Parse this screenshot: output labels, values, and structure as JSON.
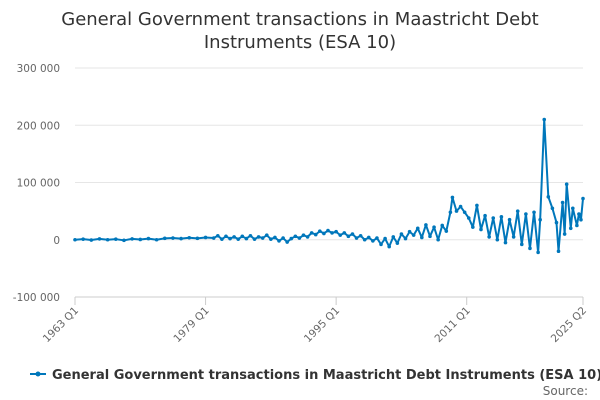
{
  "chart_data": {
    "type": "line",
    "title_lines": [
      "General Government transactions in Maastricht Debt",
      "Instruments (ESA 10)"
    ],
    "xlabel": "",
    "ylabel": "",
    "y_ticks": [
      {
        "value": 300000,
        "label": "300 000"
      },
      {
        "value": 200000,
        "label": "200 000"
      },
      {
        "value": 100000,
        "label": "100 000"
      },
      {
        "value": 0,
        "label": "0"
      },
      {
        "value": -100000,
        "label": "-100 000"
      }
    ],
    "ylim": [
      -100000,
      300000
    ],
    "x_ticks": [
      "1963 Q1",
      "1979 Q1",
      "1995 Q1",
      "2011 Q1",
      "2025 Q2"
    ],
    "x_range": [
      "1963 Q1",
      "2025 Q2"
    ],
    "grid": "horizontal",
    "legend_position": "bottom",
    "color": "#0077bb",
    "source": "Source:",
    "series": [
      {
        "name": "General Government transactions in Maastricht Debt Instruments (ESA 10)",
        "points": [
          {
            "x": "1963 Q1",
            "y": 0
          },
          {
            "x": "1964 Q1",
            "y": 1000
          },
          {
            "x": "1965 Q1",
            "y": -500
          },
          {
            "x": "1966 Q1",
            "y": 1500
          },
          {
            "x": "1967 Q1",
            "y": 0
          },
          {
            "x": "1968 Q1",
            "y": 1000
          },
          {
            "x": "1969 Q1",
            "y": -1000
          },
          {
            "x": "1970 Q1",
            "y": 1500
          },
          {
            "x": "1971 Q1",
            "y": 500
          },
          {
            "x": "1972 Q1",
            "y": 2000
          },
          {
            "x": "1973 Q1",
            "y": 0
          },
          {
            "x": "1974 Q1",
            "y": 2500
          },
          {
            "x": "1975 Q1",
            "y": 3000
          },
          {
            "x": "1976 Q1",
            "y": 2000
          },
          {
            "x": "1977 Q1",
            "y": 3500
          },
          {
            "x": "1978 Q1",
            "y": 2500
          },
          {
            "x": "1979 Q1",
            "y": 4000
          },
          {
            "x": "1980 Q1",
            "y": 3000
          },
          {
            "x": "1980 Q3",
            "y": 7000
          },
          {
            "x": "1981 Q1",
            "y": 1000
          },
          {
            "x": "1981 Q3",
            "y": 6000
          },
          {
            "x": "1982 Q1",
            "y": 2000
          },
          {
            "x": "1982 Q3",
            "y": 5000
          },
          {
            "x": "1983 Q1",
            "y": 1000
          },
          {
            "x": "1983 Q3",
            "y": 6000
          },
          {
            "x": "1984 Q1",
            "y": 2000
          },
          {
            "x": "1984 Q3",
            "y": 7000
          },
          {
            "x": "1985 Q1",
            "y": 1000
          },
          {
            "x": "1985 Q3",
            "y": 5000
          },
          {
            "x": "1986 Q1",
            "y": 3000
          },
          {
            "x": "1986 Q3",
            "y": 8000
          },
          {
            "x": "1987 Q1",
            "y": 1000
          },
          {
            "x": "1987 Q3",
            "y": 4000
          },
          {
            "x": "1988 Q1",
            "y": -2000
          },
          {
            "x": "1988 Q3",
            "y": 3000
          },
          {
            "x": "1989 Q1",
            "y": -4000
          },
          {
            "x": "1989 Q3",
            "y": 2000
          },
          {
            "x": "1990 Q1",
            "y": 6000
          },
          {
            "x": "1990 Q3",
            "y": 3000
          },
          {
            "x": "1991 Q1",
            "y": 8000
          },
          {
            "x": "1991 Q3",
            "y": 5000
          },
          {
            "x": "1992 Q1",
            "y": 12000
          },
          {
            "x": "1992 Q3",
            "y": 9000
          },
          {
            "x": "1993 Q1",
            "y": 15000
          },
          {
            "x": "1993 Q3",
            "y": 11000
          },
          {
            "x": "1994 Q1",
            "y": 16000
          },
          {
            "x": "1994 Q3",
            "y": 12000
          },
          {
            "x": "1995 Q1",
            "y": 14000
          },
          {
            "x": "1995 Q3",
            "y": 8000
          },
          {
            "x": "1996 Q1",
            "y": 12000
          },
          {
            "x": "1996 Q3",
            "y": 6000
          },
          {
            "x": "1997 Q1",
            "y": 10000
          },
          {
            "x": "1997 Q3",
            "y": 3000
          },
          {
            "x": "1998 Q1",
            "y": 7000
          },
          {
            "x": "1998 Q3",
            "y": 0
          },
          {
            "x": "1999 Q1",
            "y": 4000
          },
          {
            "x": "1999 Q3",
            "y": -2000
          },
          {
            "x": "2000 Q1",
            "y": 3000
          },
          {
            "x": "2000 Q3",
            "y": -8000
          },
          {
            "x": "2001 Q1",
            "y": 2000
          },
          {
            "x": "2001 Q3",
            "y": -12000
          },
          {
            "x": "2002 Q1",
            "y": 5000
          },
          {
            "x": "2002 Q3",
            "y": -6000
          },
          {
            "x": "2003 Q1",
            "y": 10000
          },
          {
            "x": "2003 Q3",
            "y": 2000
          },
          {
            "x": "2004 Q1",
            "y": 14000
          },
          {
            "x": "2004 Q3",
            "y": 8000
          },
          {
            "x": "2005 Q1",
            "y": 20000
          },
          {
            "x": "2005 Q3",
            "y": 4000
          },
          {
            "x": "2006 Q1",
            "y": 26000
          },
          {
            "x": "2006 Q3",
            "y": 6000
          },
          {
            "x": "2007 Q1",
            "y": 22000
          },
          {
            "x": "2007 Q3",
            "y": 0
          },
          {
            "x": "2008 Q1",
            "y": 25000
          },
          {
            "x": "2008 Q3",
            "y": 15000
          },
          {
            "x": "2009 Q1",
            "y": 48000
          },
          {
            "x": "2009 Q2",
            "y": 74000
          },
          {
            "x": "2009 Q4",
            "y": 50000
          },
          {
            "x": "2010 Q2",
            "y": 58000
          },
          {
            "x": "2010 Q4",
            "y": 48000
          },
          {
            "x": "2011 Q2",
            "y": 38000
          },
          {
            "x": "2011 Q4",
            "y": 22000
          },
          {
            "x": "2012 Q2",
            "y": 60000
          },
          {
            "x": "2012 Q4",
            "y": 18000
          },
          {
            "x": "2013 Q2",
            "y": 42000
          },
          {
            "x": "2013 Q4",
            "y": 5000
          },
          {
            "x": "2014 Q2",
            "y": 38000
          },
          {
            "x": "2014 Q4",
            "y": 0
          },
          {
            "x": "2015 Q2",
            "y": 40000
          },
          {
            "x": "2015 Q4",
            "y": -5000
          },
          {
            "x": "2016 Q2",
            "y": 35000
          },
          {
            "x": "2016 Q4",
            "y": 5000
          },
          {
            "x": "2017 Q2",
            "y": 50000
          },
          {
            "x": "2017 Q4",
            "y": -8000
          },
          {
            "x": "2018 Q2",
            "y": 45000
          },
          {
            "x": "2018 Q4",
            "y": -15000
          },
          {
            "x": "2019 Q2",
            "y": 48000
          },
          {
            "x": "2019 Q4",
            "y": -22000
          },
          {
            "x": "2020 Q1",
            "y": 35000
          },
          {
            "x": "2020 Q3",
            "y": 210000
          },
          {
            "x": "2021 Q1",
            "y": 75000
          },
          {
            "x": "2021 Q3",
            "y": 55000
          },
          {
            "x": "2022 Q1",
            "y": 30000
          },
          {
            "x": "2022 Q2",
            "y": -20000
          },
          {
            "x": "2022 Q4",
            "y": 65000
          },
          {
            "x": "2023 Q1",
            "y": 10000
          },
          {
            "x": "2023 Q2",
            "y": 97000
          },
          {
            "x": "2023 Q4",
            "y": 20000
          },
          {
            "x": "2024 Q1",
            "y": 55000
          },
          {
            "x": "2024 Q3",
            "y": 25000
          },
          {
            "x": "2024 Q4",
            "y": 45000
          },
          {
            "x": "2025 Q1",
            "y": 35000
          },
          {
            "x": "2025 Q2",
            "y": 72000
          }
        ]
      }
    ]
  }
}
